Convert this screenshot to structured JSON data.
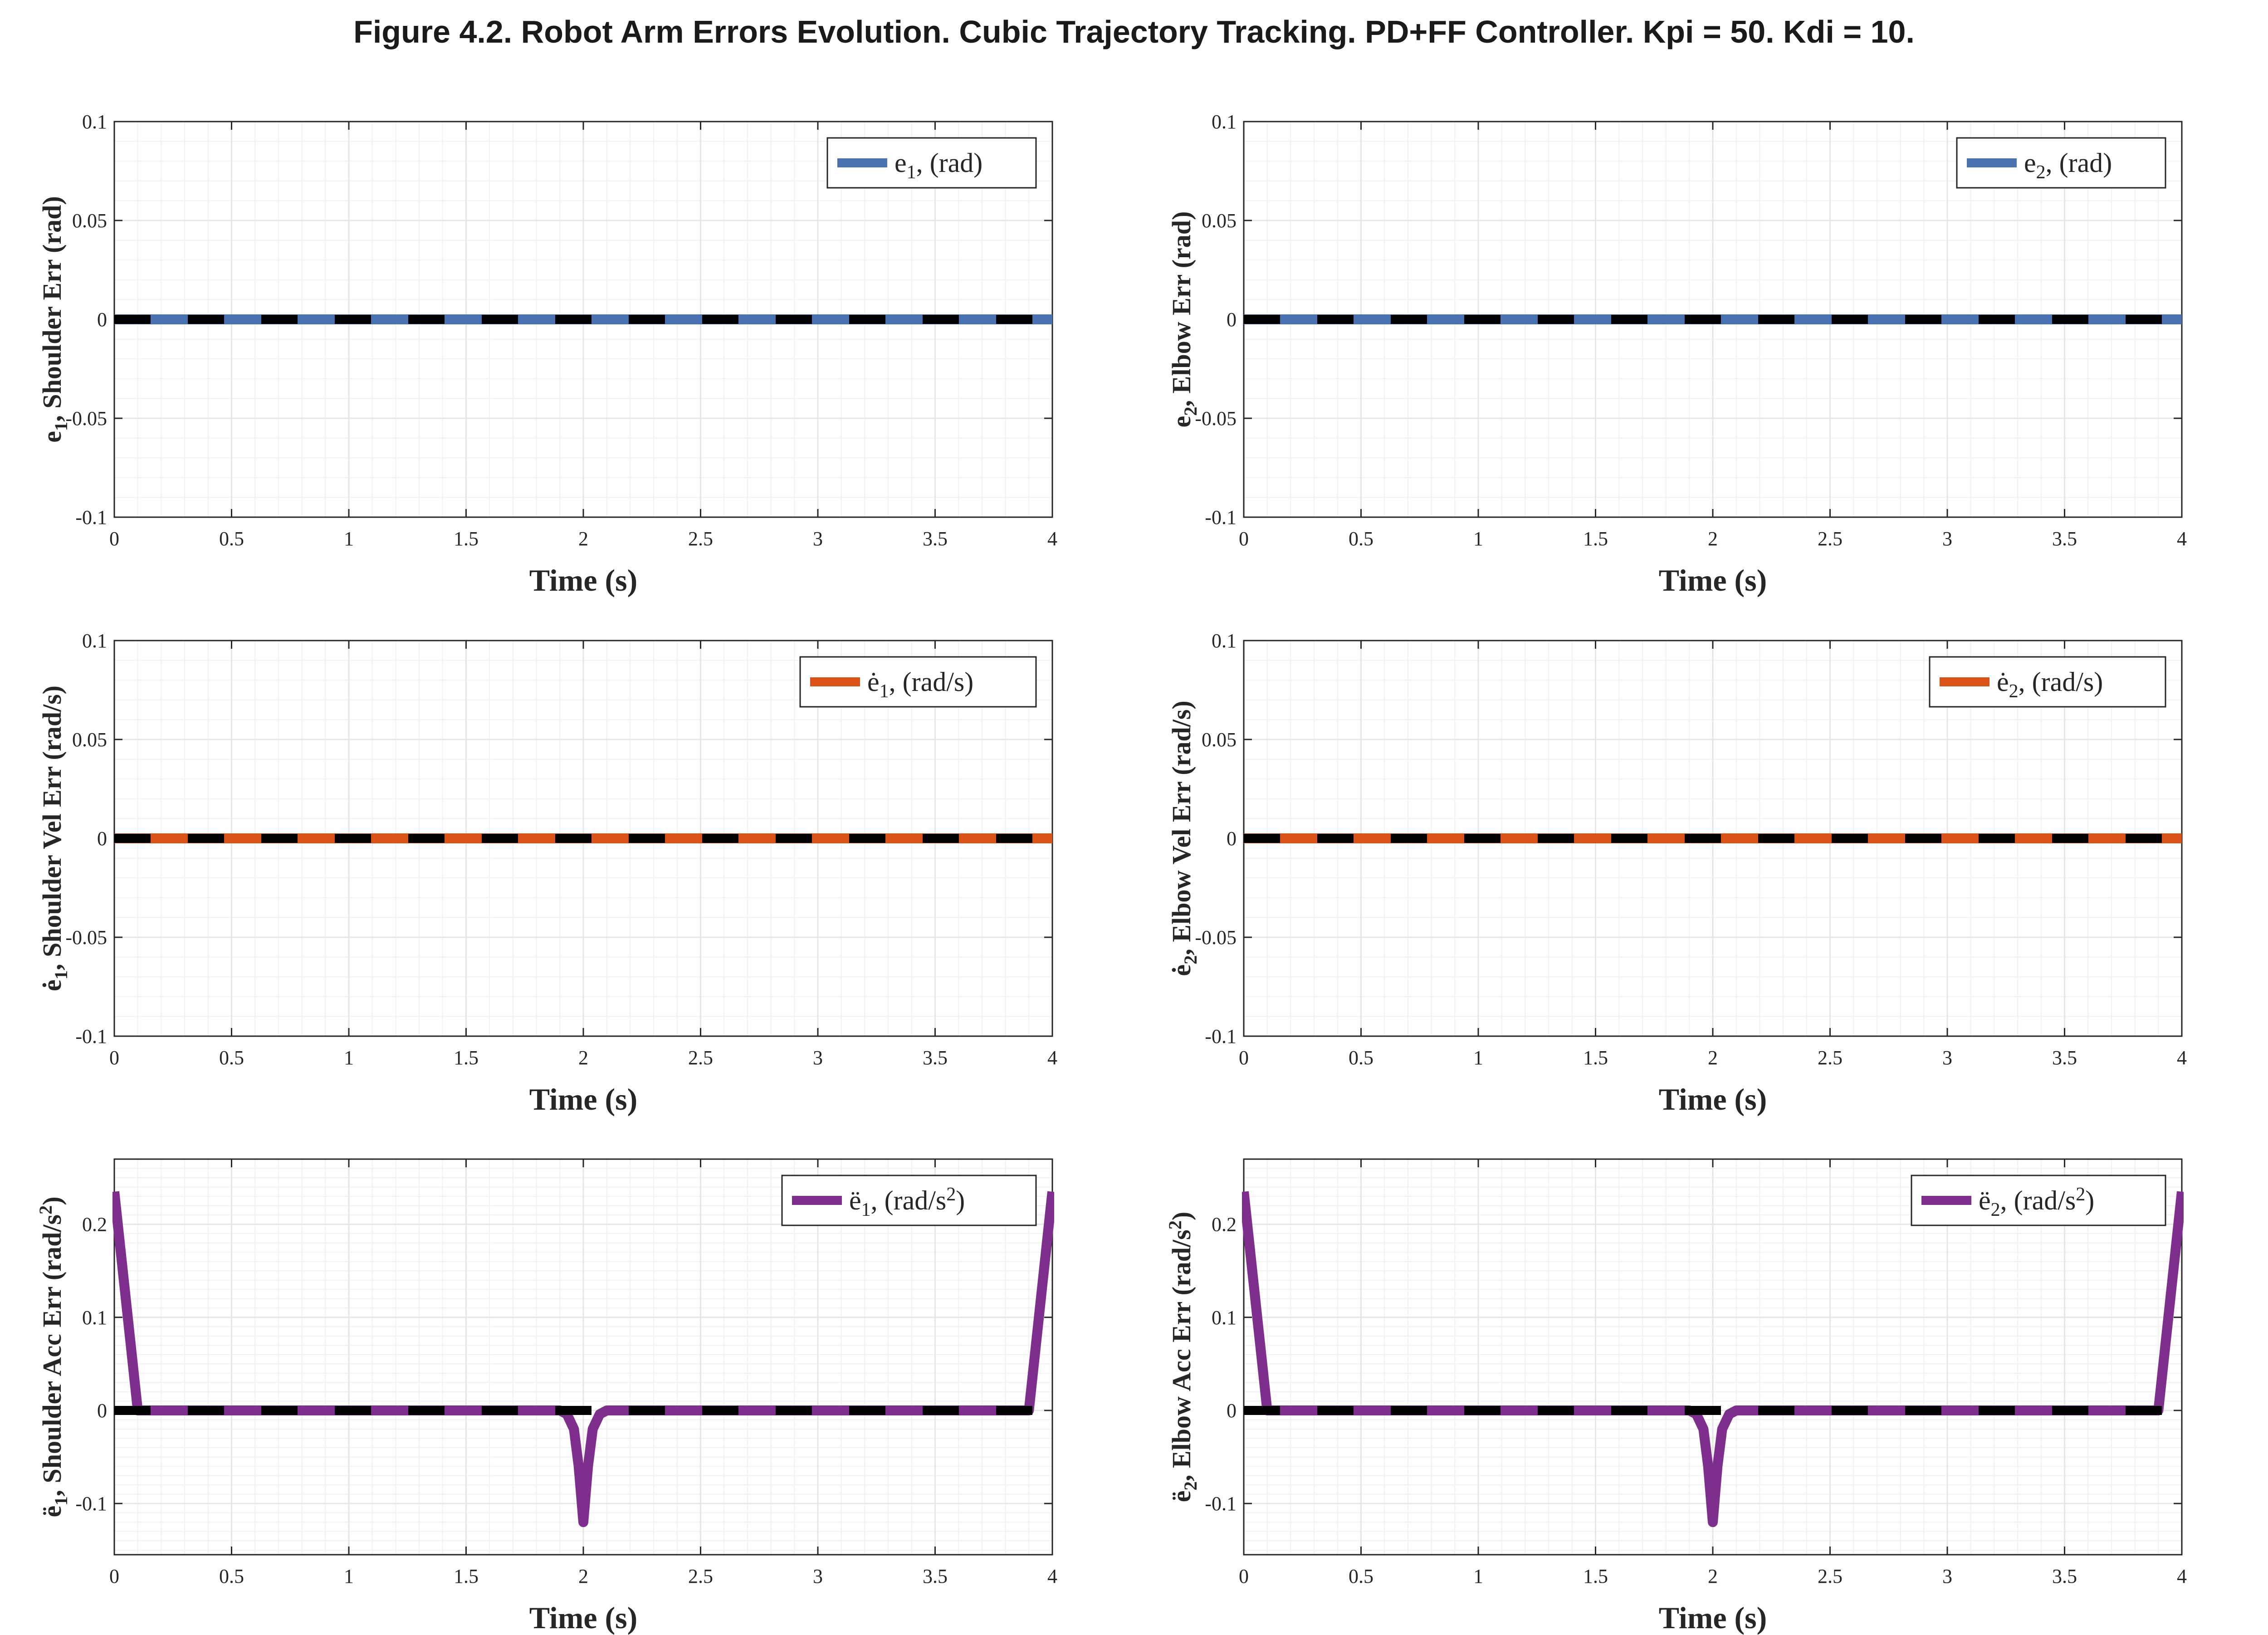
{
  "figure": {
    "title": "Figure 4.2. Robot Arm Errors Evolution. Cubic Trajectory Tracking. PD+FF Controller. Kpi = 50. Kdi = 10."
  },
  "colors": {
    "blue": "#4a72b0",
    "orange": "#d95319",
    "purple": "#7e2f8e",
    "reference": "#000000",
    "grid": "#e6e6e6",
    "axes": "#262626"
  },
  "chart_data": [
    {
      "type": "line",
      "xlabel": "Time (s)",
      "ylabel": "e1, Shoulder Err (rad)",
      "xlim": [
        0,
        4
      ],
      "ylim": [
        -0.1,
        0.1
      ],
      "xticks": [
        "0",
        "0.5",
        "1",
        "1.5",
        "2",
        "2.5",
        "3",
        "3.5",
        "4"
      ],
      "yticks": [
        "0.1",
        "0.05",
        "0",
        "-0.05",
        "-0.1"
      ],
      "grid": true,
      "legend_position": "top-right",
      "series": [
        {
          "name": "e1, (rad)",
          "color": "#4a72b0",
          "x": [
            0,
            4
          ],
          "y": [
            0,
            0
          ]
        },
        {
          "name": "",
          "style": "dashed",
          "color": "#000000",
          "x": [
            0,
            4
          ],
          "y": [
            0,
            0
          ]
        }
      ]
    },
    {
      "type": "line",
      "xlabel": "Time (s)",
      "ylabel": "e2, Elbow Err (rad)",
      "xlim": [
        0,
        4
      ],
      "ylim": [
        -0.1,
        0.1
      ],
      "xticks": [
        "0",
        "0.5",
        "1",
        "1.5",
        "2",
        "2.5",
        "3",
        "3.5",
        "4"
      ],
      "yticks": [
        "0.1",
        "0.05",
        "0",
        "-0.05",
        "-0.1"
      ],
      "grid": true,
      "legend_position": "top-right",
      "series": [
        {
          "name": "e2, (rad)",
          "color": "#4a72b0",
          "x": [
            0,
            4
          ],
          "y": [
            0,
            0
          ]
        },
        {
          "name": "",
          "style": "dashed",
          "color": "#000000",
          "x": [
            0,
            4
          ],
          "y": [
            0,
            0
          ]
        }
      ]
    },
    {
      "type": "line",
      "xlabel": "Time (s)",
      "ylabel": "ė1, Shoulder Vel Err (rad/s)",
      "xlim": [
        0,
        4
      ],
      "ylim": [
        -0.1,
        0.1
      ],
      "xticks": [
        "0",
        "0.5",
        "1",
        "1.5",
        "2",
        "2.5",
        "3",
        "3.5",
        "4"
      ],
      "yticks": [
        "0.1",
        "0.05",
        "0",
        "-0.05",
        "-0.1"
      ],
      "grid": true,
      "legend_position": "top-right",
      "series": [
        {
          "name": "ė1, (rad/s)",
          "color": "#d95319",
          "x": [
            0,
            4
          ],
          "y": [
            0,
            0
          ]
        },
        {
          "name": "",
          "style": "dashed",
          "color": "#000000",
          "x": [
            0,
            4
          ],
          "y": [
            0,
            0
          ]
        }
      ]
    },
    {
      "type": "line",
      "xlabel": "Time (s)",
      "ylabel": "ė2, Elbow Vel Err (rad/s)",
      "xlim": [
        0,
        4
      ],
      "ylim": [
        -0.1,
        0.1
      ],
      "xticks": [
        "0",
        "0.5",
        "1",
        "1.5",
        "2",
        "2.5",
        "3",
        "3.5",
        "4"
      ],
      "yticks": [
        "0.1",
        "0.05",
        "0",
        "-0.05",
        "-0.1"
      ],
      "grid": true,
      "legend_position": "top-right",
      "series": [
        {
          "name": "ė2, (rad/s)",
          "color": "#d95319",
          "x": [
            0,
            4
          ],
          "y": [
            0,
            0
          ]
        },
        {
          "name": "",
          "style": "dashed",
          "color": "#000000",
          "x": [
            0,
            4
          ],
          "y": [
            0,
            0
          ]
        }
      ]
    },
    {
      "type": "line",
      "xlabel": "Time (s)",
      "ylabel": "ë1, Shoulder Acc Err (rad/s2)",
      "xlim": [
        0,
        4
      ],
      "ylim": [
        -0.155,
        0.27
      ],
      "xticks": [
        "0",
        "0.5",
        "1",
        "1.5",
        "2",
        "2.5",
        "3",
        "3.5",
        "4"
      ],
      "yticks": [
        "0.2",
        "0.1",
        "0",
        "-0.1"
      ],
      "grid": true,
      "legend_position": "top-right",
      "series": [
        {
          "name": "ë1, (rad/s2)",
          "color": "#7e2f8e",
          "x": [
            0,
            0.1,
            1.9,
            1.93,
            1.96,
            1.98,
            2.0,
            2.02,
            2.04,
            2.07,
            2.1,
            3.9,
            4.0
          ],
          "y": [
            0.235,
            0,
            0,
            -0.004,
            -0.02,
            -0.06,
            -0.12,
            -0.06,
            -0.02,
            -0.004,
            0,
            0,
            0.235
          ]
        },
        {
          "name": "",
          "style": "dashed",
          "color": "#000000",
          "x": [
            0,
            4
          ],
          "y": [
            0,
            0
          ]
        }
      ]
    },
    {
      "type": "line",
      "xlabel": "Time (s)",
      "ylabel": "ë2, Elbow Acc Err (rad/s2)",
      "xlim": [
        0,
        4
      ],
      "ylim": [
        -0.155,
        0.27
      ],
      "xticks": [
        "0",
        "0.5",
        "1",
        "1.5",
        "2",
        "2.5",
        "3",
        "3.5",
        "4"
      ],
      "yticks": [
        "0.2",
        "0.1",
        "0",
        "-0.1"
      ],
      "grid": true,
      "legend_position": "top-right",
      "series": [
        {
          "name": "ë2, (rad/s2)",
          "color": "#7e2f8e",
          "x": [
            0,
            0.1,
            1.9,
            1.93,
            1.96,
            1.98,
            2.0,
            2.02,
            2.04,
            2.07,
            2.1,
            3.9,
            4.0
          ],
          "y": [
            0.235,
            0,
            0,
            -0.004,
            -0.02,
            -0.06,
            -0.12,
            -0.06,
            -0.02,
            -0.004,
            0,
            0,
            0.235
          ]
        },
        {
          "name": "",
          "style": "dashed",
          "color": "#000000",
          "x": [
            0,
            4
          ],
          "y": [
            0,
            0
          ]
        }
      ]
    }
  ]
}
